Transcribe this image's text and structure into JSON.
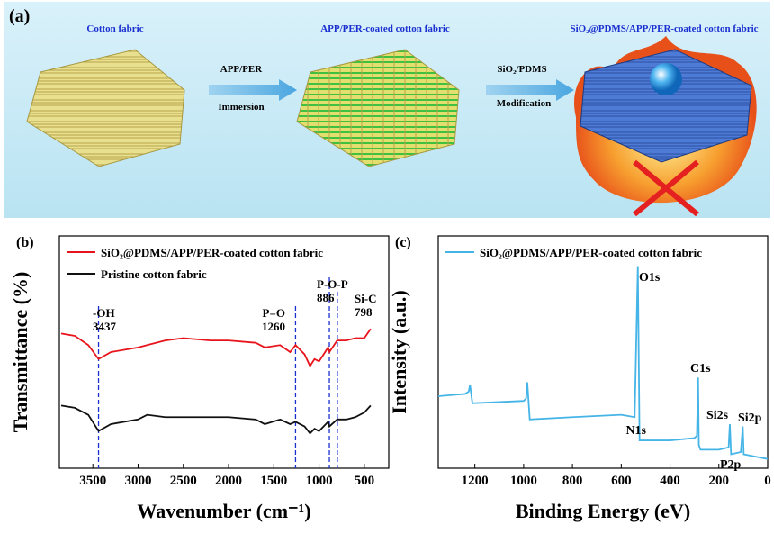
{
  "panel_a": {
    "label": "(a)",
    "stage1": "Cotton fabric",
    "step1_top": "APP/PER",
    "step1_bottom": "Immersion",
    "stage2": "APP/PER-coated cotton fabric",
    "step2_top": "SiO₂/PDMS",
    "step2_bottom": "Modification",
    "stage3": "SiO₂@PDMS/APP/PER-coated cotton fabric"
  },
  "chart_data": [
    {
      "type": "line",
      "label": "(b)",
      "x_label": "Wavenumber (cm⁻¹)",
      "y_label": "Transmittance (%)",
      "xlim": [
        3870,
        230
      ],
      "ylim": [
        0,
        100
      ],
      "xticks": [
        3500,
        3000,
        2500,
        2000,
        1500,
        1000,
        500
      ],
      "x": [
        3850,
        3700,
        3550,
        3437,
        3300,
        3000,
        2900,
        2700,
        2500,
        2200,
        2000,
        1700,
        1600,
        1430,
        1320,
        1260,
        1160,
        1100,
        1050,
        1000,
        900,
        886,
        800,
        700,
        600,
        500,
        430
      ],
      "series": [
        {
          "name": "SiO₂@PDMS/APP/PER-coated cotton fabric",
          "color": "#e8141b",
          "values": [
            58,
            57,
            53,
            47,
            50,
            52,
            53,
            55,
            56,
            55,
            55,
            54,
            52,
            53,
            50,
            53,
            49,
            44,
            47,
            46,
            52,
            50,
            55,
            55,
            56,
            56,
            60
          ]
        },
        {
          "name": "Pristine cotton fabric",
          "color": "#111111",
          "values": [
            27,
            26,
            23,
            16,
            19,
            21,
            23,
            22,
            22,
            22,
            22,
            21,
            19,
            21,
            19,
            20,
            18,
            15,
            17,
            16,
            20,
            18,
            21,
            21,
            22,
            24,
            27
          ]
        }
      ],
      "annotations": [
        {
          "label": "-OH",
          "value": 3437
        },
        {
          "label": "P=O",
          "value": 1260
        },
        {
          "label": "P-O-P",
          "value": 886
        },
        {
          "label": "Si-C",
          "value": 798
        }
      ],
      "annotation_color": "#1a2fd0"
    },
    {
      "type": "line",
      "label": "(c)",
      "x_label": "Binding Energy (eV)",
      "y_label": "Intensity (a.u.)",
      "xlim": [
        1350,
        0
      ],
      "ylim": [
        0,
        100
      ],
      "xticks": [
        1200,
        1000,
        800,
        600,
        400,
        200,
        0
      ],
      "x": [
        1350,
        1240,
        1225,
        1220,
        1210,
        1000,
        990,
        985,
        975,
        800,
        600,
        545,
        532,
        525,
        500,
        400,
        300,
        290,
        285,
        282,
        275,
        200,
        160,
        155,
        150,
        110,
        102,
        98,
        50,
        0
      ],
      "series": [
        {
          "name": "SiO₂@PDMS/APP/PER-coated cotton fabric",
          "color": "#45b4e6",
          "values": [
            31,
            32,
            33,
            36,
            28,
            29,
            30,
            37,
            21,
            22,
            23,
            22,
            87,
            12,
            12,
            12,
            13,
            14,
            39,
            10,
            8,
            8,
            9,
            19,
            6,
            7,
            18,
            6,
            5,
            4
          ]
        }
      ],
      "peak_labels": [
        "O1s",
        "C1s",
        "N1s",
        "Si2s",
        "Si2p",
        "P2p"
      ]
    }
  ]
}
